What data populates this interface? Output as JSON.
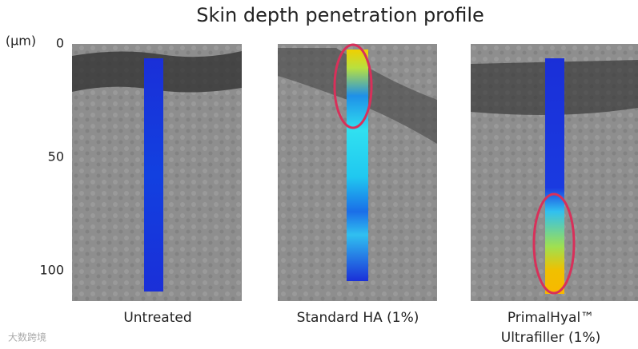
{
  "title": "Skin depth penetration profile",
  "axis": {
    "unit": "(µm)",
    "ticks": [
      0,
      50,
      100
    ]
  },
  "panels": [
    {
      "label": [
        "Untreated"
      ]
    },
    {
      "label": [
        "Standard HA (1%)"
      ]
    },
    {
      "label": [
        "PrimalHyal™",
        "Ultrafiller (1%)"
      ]
    }
  ],
  "watermark": "大数跨境"
}
